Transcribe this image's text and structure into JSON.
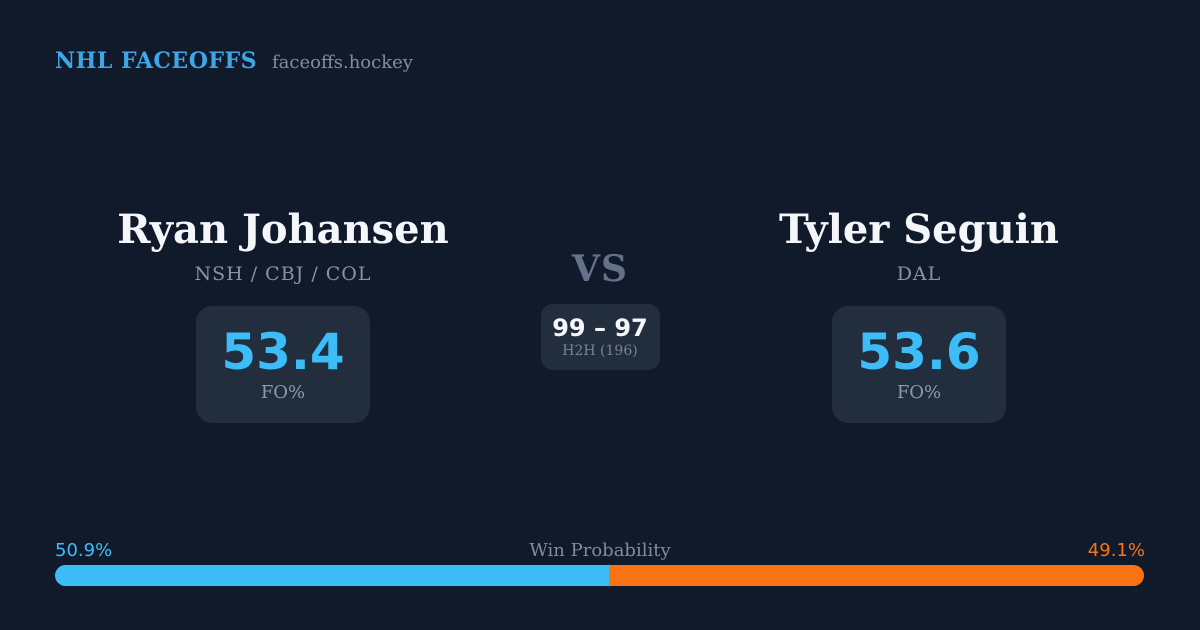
{
  "header": {
    "brand": "NHL FACEOFFS",
    "site": "faceoffs.hockey"
  },
  "matchup": {
    "player_left": {
      "name": "Ryan Johansen",
      "teams": "NSH / CBJ / COL",
      "fo_pct": "53.4",
      "fo_label": "FO%"
    },
    "vs_label": "VS",
    "h2h": {
      "score": "99 – 97",
      "label": "H2H (196)"
    },
    "player_right": {
      "name": "Tyler Seguin",
      "teams": "DAL",
      "fo_pct": "53.6",
      "fo_label": "FO%"
    }
  },
  "win_probability": {
    "label": "Win Probability",
    "left_pct_label": "50.9%",
    "right_pct_label": "49.1%",
    "left_value": 50.9,
    "right_value": 49.1
  },
  "colors": {
    "background": "#111a2b",
    "card": "#222d3d",
    "brand_blue": "#3da7e6",
    "accent_blue": "#3cbdf8",
    "accent_orange": "#f97316",
    "text_primary": "#f4f6f9",
    "text_muted": "#8494ab"
  }
}
